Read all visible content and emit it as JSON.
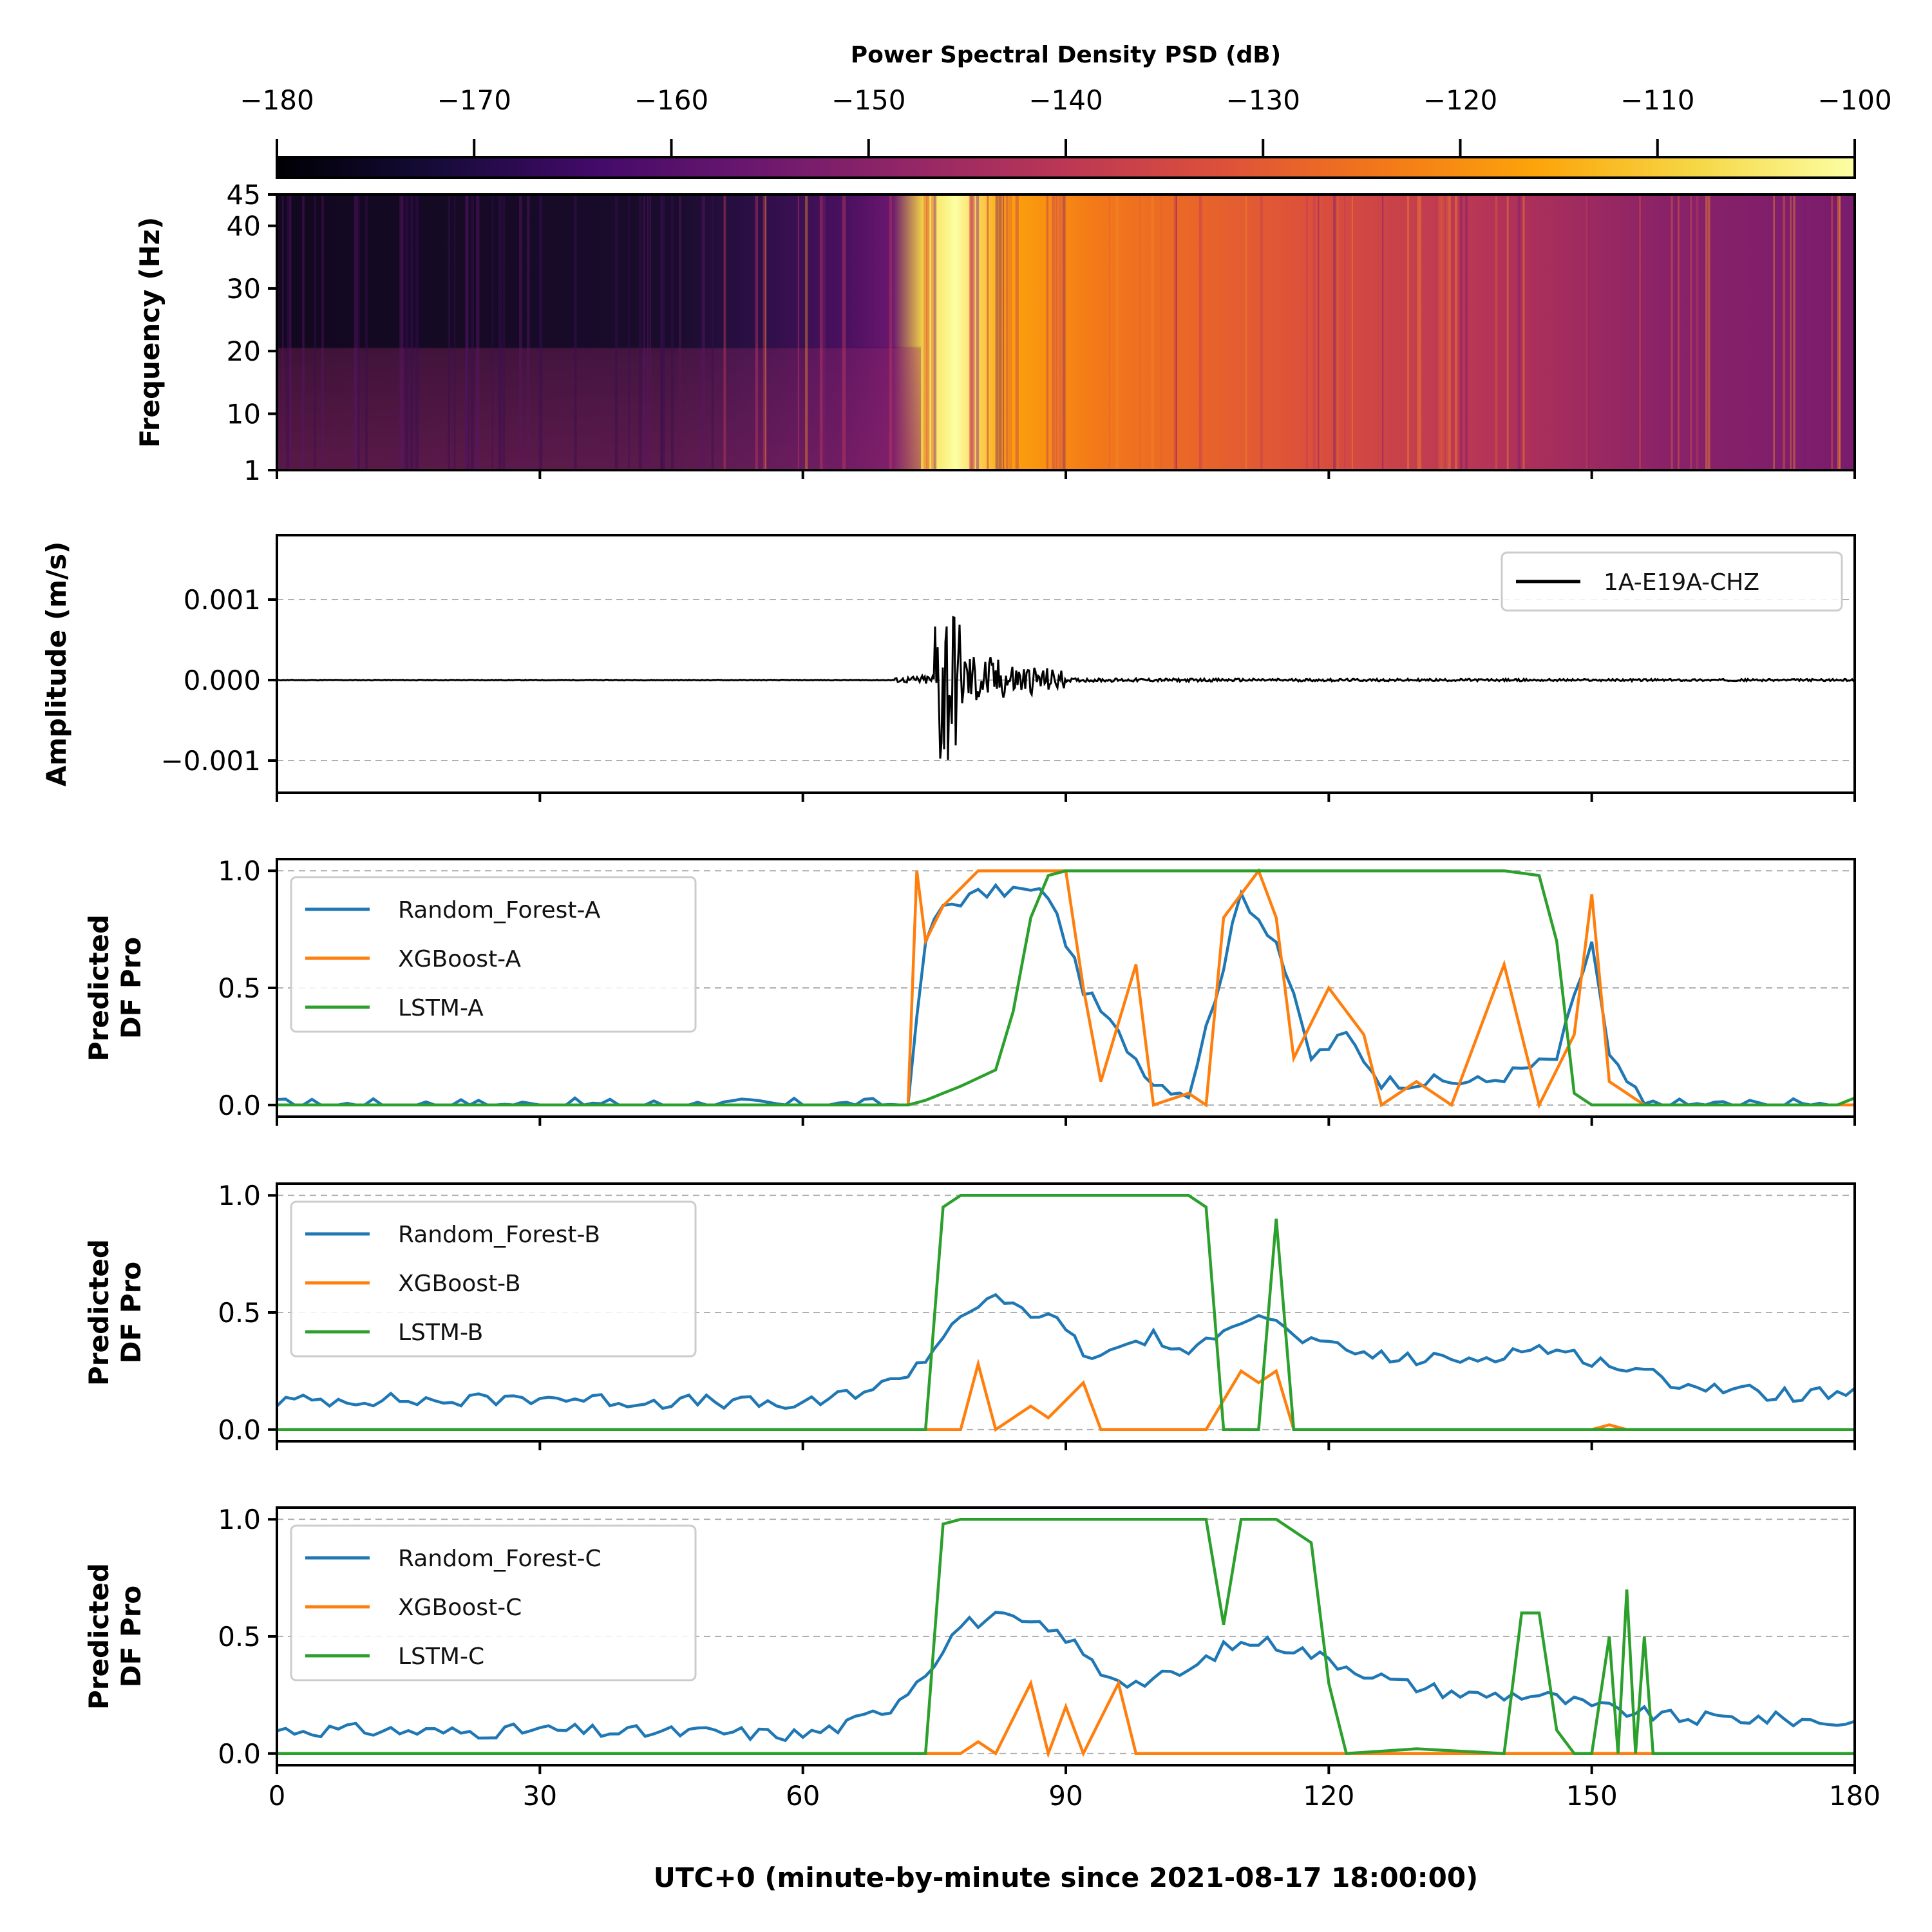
{
  "figure": {
    "xlabel": "UTC+0 (minute-by-minute since 2021-08-17 18:00:00)",
    "xticks": [
      0,
      30,
      60,
      90,
      120,
      150,
      180
    ],
    "xlim": [
      0,
      180
    ]
  },
  "chart_data": [
    {
      "type": "heatmap",
      "ylabel": "Frequency (Hz)",
      "yticks": [
        1,
        10,
        20,
        30,
        40,
        45
      ],
      "ylim": [
        1,
        45
      ],
      "colorbar": {
        "label": "Power Spectral Density PSD (dB)",
        "ticks": [
          -180,
          -170,
          -160,
          -150,
          -140,
          -130,
          -120,
          -110,
          -100
        ],
        "range": [
          -180,
          -100
        ],
        "colormap": "inferno"
      }
    },
    {
      "type": "line",
      "ylabel": "Amplitude (m/s)",
      "yticks": [
        -0.001,
        0.0,
        0.001
      ],
      "ytick_labels": [
        "−0.001",
        "0.000",
        "0.001"
      ],
      "ylim": [
        -0.0014,
        0.0018
      ],
      "legend": "top-right",
      "grid": true,
      "series": [
        {
          "name": "1A-E19A-CHZ",
          "color": "#000000"
        }
      ]
    },
    {
      "type": "line",
      "ylabel": [
        "Predicted",
        "DF Pro"
      ],
      "yticks": [
        0.0,
        0.5,
        1.0
      ],
      "ytick_labels": [
        "0.0",
        "0.5",
        "1.0"
      ],
      "ylim": [
        -0.05,
        1.05
      ],
      "legend": "top-left",
      "grid": true,
      "series": [
        {
          "name": "Random_Forest-A",
          "color": "#1f77b4"
        },
        {
          "name": "XGBoost-A",
          "color": "#ff7f0e"
        },
        {
          "name": "LSTM-A",
          "color": "#2ca02c"
        }
      ]
    },
    {
      "type": "line",
      "ylabel": [
        "Predicted",
        "DF Pro"
      ],
      "yticks": [
        0.0,
        0.5,
        1.0
      ],
      "ytick_labels": [
        "0.0",
        "0.5",
        "1.0"
      ],
      "ylim": [
        -0.05,
        1.05
      ],
      "legend": "top-left",
      "grid": true,
      "series": [
        {
          "name": "Random_Forest-B",
          "color": "#1f77b4"
        },
        {
          "name": "XGBoost-B",
          "color": "#ff7f0e"
        },
        {
          "name": "LSTM-B",
          "color": "#2ca02c"
        }
      ]
    },
    {
      "type": "line",
      "ylabel": [
        "Predicted",
        "DF Pro"
      ],
      "yticks": [
        0.0,
        0.5,
        1.0
      ],
      "ytick_labels": [
        "0.0",
        "0.5",
        "1.0"
      ],
      "ylim": [
        -0.05,
        1.05
      ],
      "legend": "top-left",
      "grid": true,
      "series": [
        {
          "name": "Random_Forest-C",
          "color": "#1f77b4"
        },
        {
          "name": "XGBoost-C",
          "color": "#ff7f0e"
        },
        {
          "name": "LSTM-C",
          "color": "#2ca02c"
        }
      ]
    }
  ]
}
